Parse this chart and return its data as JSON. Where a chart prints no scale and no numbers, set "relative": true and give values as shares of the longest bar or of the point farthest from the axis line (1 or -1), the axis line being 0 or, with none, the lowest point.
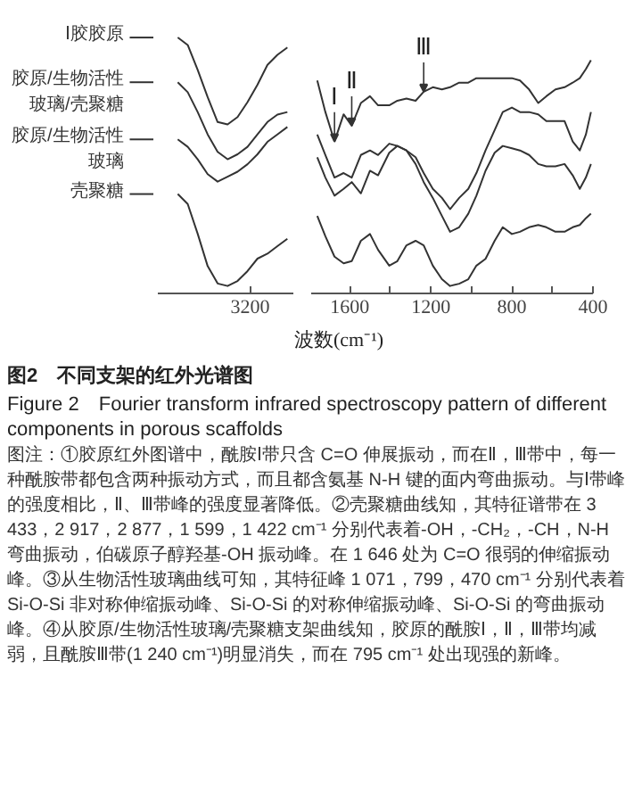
{
  "chart_data": [
    {
      "type": "line",
      "relative": true,
      "legend": "left",
      "categories": [
        null,
        null,
        null,
        null,
        null,
        null,
        null,
        null,
        null,
        null,
        null,
        null
      ],
      "series": [
        {
          "name": "Ⅰ胶胶原",
          "color": "#333333",
          "values": [
            1.0,
            0.97,
            0.87,
            0.76,
            0.66,
            0.65,
            0.68,
            0.74,
            0.81,
            0.89,
            0.93,
            0.96
          ]
        },
        {
          "name": "胶原/生物活性玻璃/壳聚糖",
          "color": "#333333",
          "values": [
            0.82,
            0.78,
            0.7,
            0.61,
            0.54,
            0.51,
            0.53,
            0.56,
            0.61,
            0.66,
            0.69,
            0.7
          ]
        },
        {
          "name": "胶原/生物活性玻璃",
          "color": "#333333",
          "values": [
            0.59,
            0.56,
            0.51,
            0.45,
            0.42,
            0.44,
            0.46,
            0.49,
            0.53,
            0.58,
            0.61,
            0.64
          ]
        },
        {
          "name": "壳聚糖",
          "color": "#333333",
          "values": [
            0.37,
            0.33,
            0.21,
            0.08,
            0.01,
            0,
            0.02,
            0.06,
            0.11,
            0.13,
            0.16,
            0.19
          ]
        }
      ],
      "annotations": [
        "3200"
      ]
    },
    {
      "type": "line",
      "relative": true,
      "xlim": [
        1790,
        400
      ],
      "xticks": [
        1600,
        {
          "value": 1400,
          "label": null
        },
        1200,
        {
          "value": 1000,
          "label": null
        },
        800,
        {
          "value": 600,
          "label": null
        },
        400
      ],
      "xlabel": "波数(cm⁻¹)",
      "title": "图2　不同支架的红外光谱图",
      "subtitle": "Figure 2　Fourier transform infrared spectroscopy pattern of different components in porous scaffolds",
      "x": [
        1760,
        1720,
        1675,
        1630,
        1590,
        1545,
        1500,
        1460,
        1405,
        1365,
        1320,
        1275,
        1235,
        1190,
        1145,
        1105,
        1060,
        1015,
        975,
        930,
        885,
        845,
        800,
        760,
        715,
        670,
        630,
        585,
        540,
        500,
        465,
        435,
        410
      ],
      "series": [
        {
          "color": "#333333",
          "values": [
            0.91,
            0.77,
            0.64,
            0.76,
            0.71,
            0.81,
            0.84,
            0.8,
            0.8,
            0.82,
            0.83,
            0.82,
            0.86,
            0.88,
            0.87,
            0.88,
            0.9,
            0.9,
            0.92,
            0.92,
            0.92,
            0.92,
            0.92,
            0.91,
            0.87,
            0.81,
            0.84,
            0.87,
            0.88,
            0.9,
            0.92,
            0.96,
            1.0
          ]
        },
        {
          "color": "#333333",
          "values": [
            0.67,
            0.58,
            0.48,
            0.5,
            0.48,
            0.58,
            0.6,
            0.58,
            0.63,
            0.62,
            0.6,
            0.57,
            0.5,
            0.43,
            0.39,
            0.34,
            0.39,
            0.43,
            0.5,
            0.6,
            0.69,
            0.77,
            0.79,
            0.77,
            0.77,
            0.76,
            0.73,
            0.73,
            0.73,
            0.64,
            0.6,
            0.67,
            0.77
          ]
        },
        {
          "color": "#333333",
          "values": [
            0.57,
            0.48,
            0.4,
            0.43,
            0.46,
            0.41,
            0.51,
            0.49,
            0.59,
            0.62,
            0.6,
            0.54,
            0.46,
            0.39,
            0.31,
            0.24,
            0.26,
            0.32,
            0.4,
            0.51,
            0.59,
            0.62,
            0.61,
            0.6,
            0.58,
            0.54,
            0.53,
            0.53,
            0.54,
            0.49,
            0.43,
            0.48,
            0.54
          ]
        },
        {
          "color": "#333333",
          "values": [
            0.31,
            0.22,
            0.13,
            0.1,
            0.11,
            0.2,
            0.23,
            0.16,
            0.09,
            0.11,
            0.18,
            0.2,
            0.18,
            0.09,
            0.03,
            0,
            0.01,
            0.03,
            0.09,
            0.12,
            0.2,
            0.26,
            0.23,
            0.24,
            0.26,
            0.27,
            0.26,
            0.24,
            0.24,
            0.26,
            0.27,
            0.3,
            0.32
          ]
        }
      ],
      "annotations": [
        {
          "text": "Ⅰ",
          "x": 1675,
          "y": 0.64
        },
        {
          "text": "Ⅱ",
          "x": 1590,
          "y": 0.71
        },
        {
          "text": "Ⅲ",
          "x": 1235,
          "y": 0.86
        },
        "图注：①胶原红外图谱中，酰胺Ⅰ带只含 C=O 伸展振动，而在Ⅱ，Ⅲ带中，每一种酰胺带都包含两种振动方式，而且都含氨基 N-H 键的面内弯曲振动。与Ⅰ带峰的强度相比，Ⅱ、Ⅲ带峰的强度显著降低。②壳聚糖曲线知，其特征谱带在 3 433，2 917，2 877，1 599，1 422 cm⁻¹ 分别代表着-OH，-CH₂，-CH，N-H 弯曲振动，伯碳原子醇羟基-OH 振动峰。在 1 646 处为 C=O 很弱的伸缩振动峰。③从生物活性玻璃曲线可知，其特征峰 1 071，799，470 cm⁻¹ 分别代表着 Si-O-Si 非对称伸缩振动峰、Si-O-Si 的对称伸缩振动峰、Si-O-Si 的弯曲振动峰。④从胶原/生物活性玻璃/壳聚糖支架曲线知，胶原的酰胺Ⅰ，Ⅱ，Ⅲ带均减弱，且酰胺Ⅲ带(1 240 cm⁻¹)明显消失，而在 795 cm⁻¹ 处出现强的新峰。"
      ]
    }
  ]
}
